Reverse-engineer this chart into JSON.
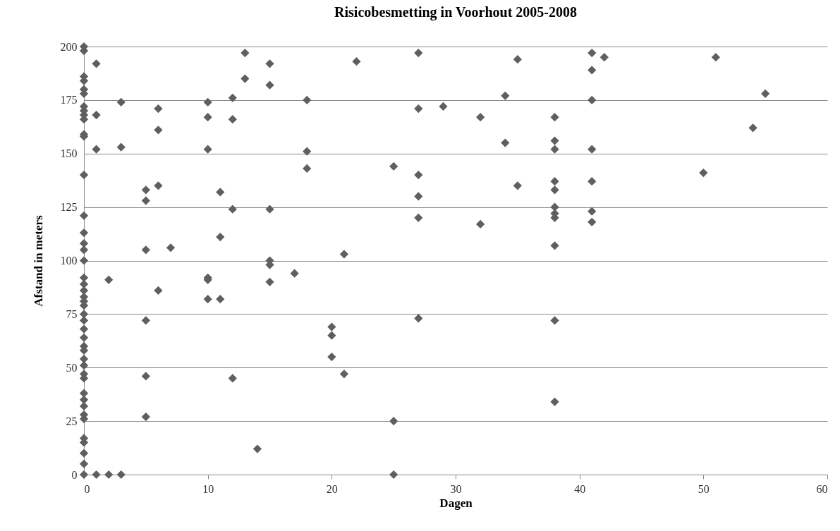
{
  "chart_data": {
    "type": "scatter",
    "title": "Risicobesmetting in Voorhout 2005-2008",
    "xlabel": "Dagen",
    "ylabel": "Afstand in meters",
    "x": [
      0,
      0,
      0,
      0,
      0,
      0,
      0,
      0,
      0,
      0,
      0,
      0,
      0,
      0,
      0,
      0,
      0,
      0,
      0,
      0,
      0,
      0,
      0,
      0,
      0,
      0,
      0,
      0,
      0,
      0,
      0,
      0,
      0,
      0,
      0,
      0,
      0,
      0,
      0,
      0,
      0,
      0,
      0,
      0,
      1,
      1,
      1,
      1,
      2,
      2,
      3,
      3,
      3,
      5,
      5,
      5,
      5,
      5,
      5,
      6,
      6,
      6,
      6,
      7,
      10,
      10,
      10,
      10,
      10,
      10,
      11,
      11,
      11,
      12,
      12,
      12,
      12,
      13,
      13,
      14,
      15,
      15,
      15,
      15,
      15,
      15,
      17,
      18,
      18,
      18,
      20,
      20,
      20,
      21,
      21,
      22,
      25,
      25,
      25,
      27,
      27,
      27,
      27,
      27,
      27,
      29,
      32,
      32,
      34,
      34,
      35,
      35,
      38,
      38,
      38,
      38,
      38,
      38,
      38,
      38,
      38,
      38,
      38,
      41,
      41,
      41,
      41,
      41,
      41,
      41,
      42,
      50,
      51,
      54,
      55
    ],
    "series": [
      {
        "color": "#5f5f5f",
        "values": [
          200,
          198,
          186,
          184,
          180,
          178,
          172,
          170,
          168,
          166,
          159,
          158,
          140,
          121,
          113,
          108,
          105,
          100,
          92,
          89,
          86,
          83,
          81,
          79,
          75,
          72,
          68,
          64,
          60,
          58,
          54,
          51,
          47,
          45,
          38,
          35,
          32,
          28,
          26,
          17,
          15,
          10,
          5,
          0,
          192,
          168,
          152,
          0,
          91,
          0,
          174,
          153,
          0,
          133,
          128,
          105,
          72,
          46,
          27,
          171,
          161,
          135,
          86,
          106,
          174,
          167,
          152,
          92,
          91,
          82,
          132,
          111,
          82,
          176,
          166,
          124,
          45,
          197,
          185,
          12,
          192,
          182,
          124,
          100,
          98,
          90,
          94,
          175,
          151,
          143,
          69,
          65,
          55,
          103,
          47,
          193,
          144,
          25,
          0,
          197,
          171,
          140,
          130,
          120,
          73,
          172,
          167,
          117,
          177,
          155,
          194,
          135,
          167,
          156,
          152,
          137,
          133,
          125,
          122,
          120,
          107,
          72,
          34,
          197,
          189,
          175,
          152,
          137,
          123,
          118,
          195,
          141,
          195,
          162,
          178
        ]
      }
    ],
    "xlim": [
      0,
      60
    ],
    "xticks": [
      0,
      10,
      20,
      30,
      40,
      50,
      60
    ],
    "ylim": [
      0,
      200
    ],
    "yticks": [
      0,
      25,
      50,
      75,
      100,
      125,
      150,
      175,
      200
    ],
    "grid": "y",
    "marker": "diamond",
    "legend": false
  }
}
